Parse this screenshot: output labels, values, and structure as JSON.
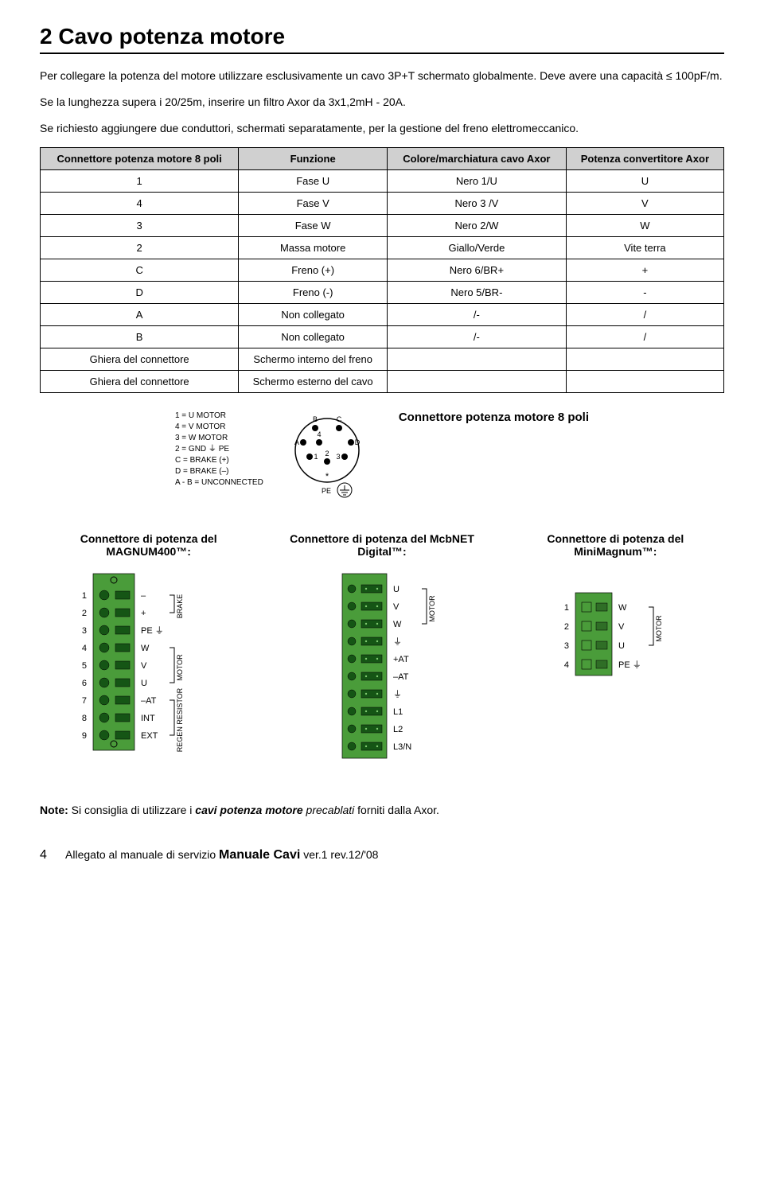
{
  "title": "2 Cavo potenza motore",
  "intro": {
    "p1": "Per collegare la potenza del motore utilizzare esclusivamente un cavo 3P+T schermato globalmente. Deve avere una capacità ≤ 100pF/m.",
    "p2": "Se la lunghezza supera i 20/25m, inserire un filtro Axor da 3x1,2mH - 20A.",
    "p3": "Se richiesto aggiungere due conduttori, schermati separatamente, per la gestione del freno elettromeccanico."
  },
  "table": {
    "headers": [
      "Connettore potenza motore 8 poli",
      "Funzione",
      "Colore/marchiatura cavo Axor",
      "Potenza convertitore Axor"
    ],
    "rows": [
      [
        "1",
        "Fase U",
        "Nero 1/U",
        "U"
      ],
      [
        "4",
        "Fase V",
        "Nero 3 /V",
        "V"
      ],
      [
        "3",
        "Fase W",
        "Nero 2/W",
        "W"
      ],
      [
        "2",
        "Massa motore",
        "Giallo/Verde",
        "Vite terra"
      ],
      [
        "C",
        "Freno (+)",
        "Nero 6/BR+",
        "+"
      ],
      [
        "D",
        "Freno (-)",
        "Nero 5/BR-",
        "-"
      ],
      [
        "A",
        "Non collegato",
        "/-",
        "/"
      ],
      [
        "B",
        "Non collegato",
        "/-",
        "/"
      ],
      [
        "Ghiera del connettore",
        "Schermo interno del freno",
        "",
        ""
      ],
      [
        "Ghiera del connettore",
        "Schermo esterno del cavo",
        "",
        ""
      ]
    ]
  },
  "pinout": {
    "lines": [
      "1 = U   MOTOR",
      "4 = V   MOTOR",
      "3 = W   MOTOR",
      "2 = GND ⏚ PE",
      "C = BRAKE (+)",
      "D = BRAKE (–)",
      "A  - B = UNCONNECTED"
    ],
    "circle_labels": {
      "A": "A",
      "B": "B",
      "C": "C",
      "D": "D",
      "1": "1",
      "2": "2",
      "3": "3",
      "4": "4",
      "star": "*",
      "pe": "PE"
    },
    "title": "Connettore potenza motore 8 poli"
  },
  "products": {
    "magnum": {
      "title": "Connettore di potenza del MAGNUM400™:",
      "rows": [
        {
          "n": "1",
          "label": "–",
          "group": "BRAKE"
        },
        {
          "n": "2",
          "label": "+",
          "group": "BRAKE"
        },
        {
          "n": "3",
          "label": "PE ⏚",
          "group": ""
        },
        {
          "n": "4",
          "label": "W",
          "group": "MOTOR"
        },
        {
          "n": "5",
          "label": "V",
          "group": "MOTOR"
        },
        {
          "n": "6",
          "label": "U",
          "group": "MOTOR"
        },
        {
          "n": "7",
          "label": "–AT",
          "group": "REGEN RESISTOR"
        },
        {
          "n": "8",
          "label": "INT",
          "group": "REGEN RESISTOR"
        },
        {
          "n": "9",
          "label": "EXT",
          "group": "REGEN RESISTOR"
        }
      ],
      "colors": {
        "block": "#4a9c3a",
        "hole": "#155515"
      }
    },
    "mcbnet": {
      "title": "Connettore di potenza del McbNET Digital™:",
      "rows": [
        "U",
        "V",
        "W",
        "⏚",
        "+AT",
        "–AT",
        "⏚",
        "L1",
        "L2",
        "L3/N"
      ],
      "colors": {
        "block": "#4a9c3a",
        "hole": "#155515"
      }
    },
    "mini": {
      "title": "Connettore di potenza del MiniMagnum™:",
      "rows": [
        {
          "n": "1",
          "label": "W"
        },
        {
          "n": "2",
          "label": "V"
        },
        {
          "n": "3",
          "label": "U"
        },
        {
          "n": "4",
          "label": "PE ⏚"
        }
      ],
      "group": "MOTOR",
      "colors": {
        "block": "#4a9c3a",
        "hole": "#2f6e26"
      }
    }
  },
  "note_prefix": "Note: ",
  "note_text_1": "Si consiglia di utilizzare i ",
  "note_em": "cavi potenza motore",
  "note_text_2": " precablati",
  "note_text_3": " forniti dalla Axor.",
  "footer": {
    "page": "4",
    "left": "Allegato al manuale di servizio",
    "manual": "Manuale Cavi",
    "ver": "ver.1  rev.12/'08"
  },
  "style": {
    "header_bg": "#d0d0d0",
    "border": "#000000",
    "green": "#4a9c3a",
    "dark_green": "#155515"
  }
}
